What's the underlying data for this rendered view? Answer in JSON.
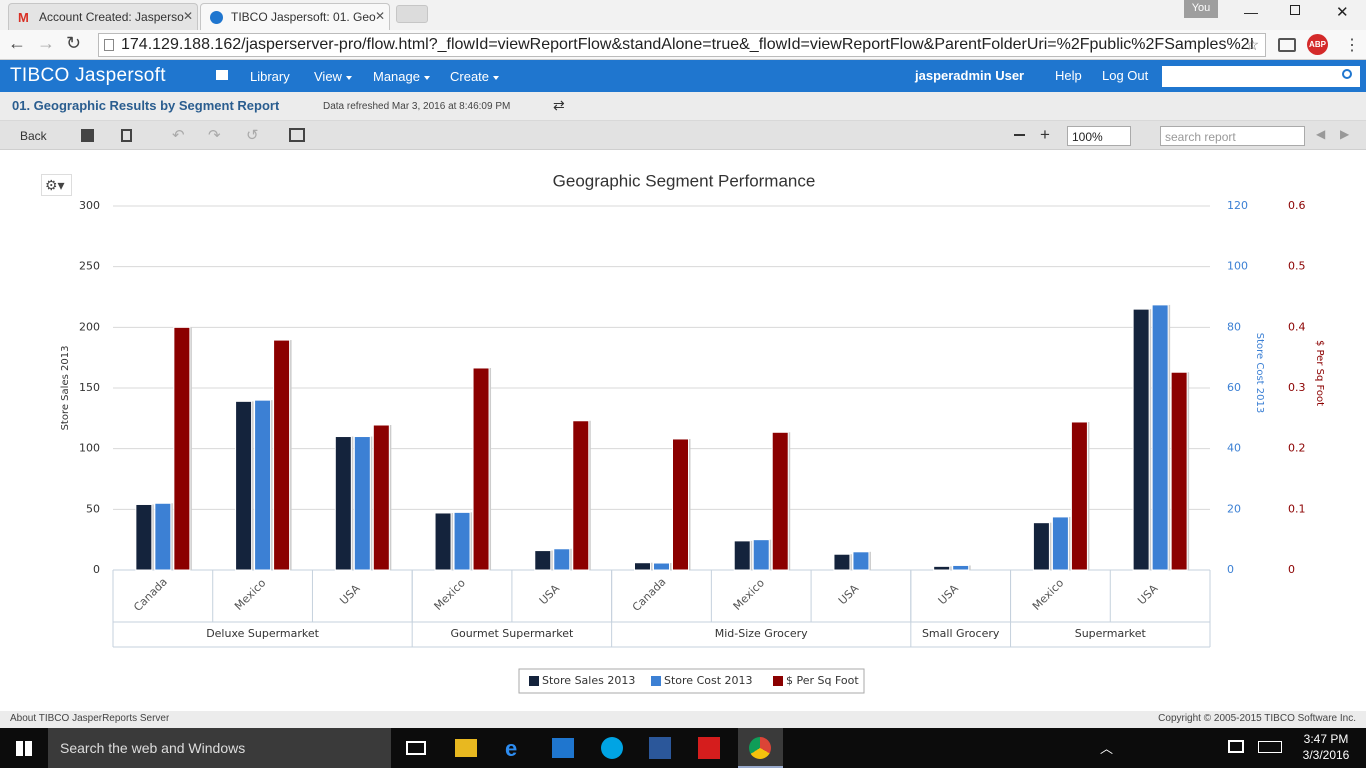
{
  "browser": {
    "tabs": [
      "Account Created: Jasperso",
      "TIBCO Jaspersoft: 01. Geo"
    ],
    "profile": "You",
    "url": "174.129.188.162/jasperserver-pro/flow.html?_flowId=viewReportFlow&standAlone=true&_flowId=viewReportFlow&ParentFolderUri=%2Fpublic%2FSamples%2I",
    "extension": "ABP"
  },
  "app": {
    "brand": "TIBCO Jaspersoft",
    "nav": [
      "Library",
      "View",
      "Manage",
      "Create"
    ],
    "user": "jasperadmin User",
    "links": [
      "Help",
      "Log Out"
    ]
  },
  "report": {
    "title": "01. Geographic Results by Segment Report",
    "refreshed": "Data refreshed Mar 3, 2016 at 8:46:09 PM",
    "back": "Back",
    "zoom": "100%",
    "search_placeholder": "search report"
  },
  "chart_data": {
    "type": "bar",
    "title": "Geographic Segment Performance",
    "category_groups": [
      {
        "name": "Deluxe Supermarket",
        "categories": [
          "Canada",
          "Mexico",
          "USA"
        ]
      },
      {
        "name": "Gourmet Supermarket",
        "categories": [
          "Mexico",
          "USA"
        ]
      },
      {
        "name": "Mid-Size Grocery",
        "categories": [
          "Canada",
          "Mexico",
          "USA"
        ]
      },
      {
        "name": "Small Grocery",
        "categories": [
          "USA"
        ]
      },
      {
        "name": "Supermarket",
        "categories": [
          "Mexico",
          "USA"
        ]
      }
    ],
    "series": [
      {
        "name": "Store Sales 2013",
        "color": "#14233c",
        "values": [
          54,
          139,
          110,
          47,
          16,
          6,
          24,
          13,
          3,
          39,
          215
        ]
      },
      {
        "name": "Store Cost 2013",
        "color": "#3c80d4",
        "axis": "y2",
        "values": [
          22,
          56,
          44,
          19,
          7,
          2.3,
          10,
          6,
          1.5,
          17.5,
          87.4
        ]
      },
      {
        "name": "$ Per Sq Foot",
        "color": "#8b0000",
        "axis": "y3",
        "values": [
          0.4,
          0.379,
          0.239,
          0.333,
          0.246,
          0.216,
          0.227,
          null,
          null,
          0.244,
          0.326
        ]
      }
    ],
    "y_label": "Store Sales 2013",
    "y2_label": "Store Cost 2013",
    "y3_label": "$ Per Sq Foot",
    "ylim": [
      0,
      300
    ],
    "yticks": [
      0,
      50,
      100,
      150,
      200,
      250,
      300
    ],
    "y2lim": [
      0,
      120
    ],
    "y2ticks": [
      0,
      20,
      40,
      60,
      80,
      100,
      120
    ],
    "y3lim": [
      0,
      0.6
    ],
    "y3ticks": [
      0,
      0.1,
      0.2,
      0.3,
      0.4,
      0.5,
      0.6
    ],
    "y2_color": "#3c80d4",
    "y3_color": "#8b0000",
    "grid": true,
    "legend": "bottom"
  },
  "footer": {
    "about": "About TIBCO JasperReports Server",
    "copyright": "Copyright © 2005-2015 TIBCO Software Inc."
  },
  "taskbar": {
    "search": "Search the web and Windows",
    "time": "3:47 PM",
    "date": "3/3/2016"
  }
}
